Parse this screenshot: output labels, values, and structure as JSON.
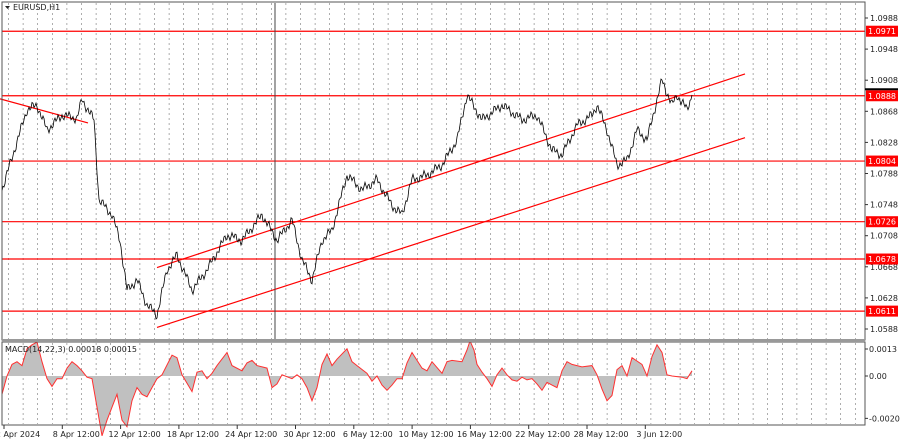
{
  "chart_data": [
    {
      "type": "line",
      "title": "EURUSD,H1",
      "symbol": "EURUSD",
      "timeframe": "H1",
      "ylim": [
        1.0575,
        1.1005
      ],
      "y_ticks": [
        1.0988,
        1.0948,
        1.0908,
        1.0868,
        1.0828,
        1.0788,
        1.0748,
        1.0708,
        1.0668,
        1.0628,
        1.0588
      ],
      "x_tick_labels": [
        "2 Apr 2024",
        "8 Apr 12:00",
        "12 Apr 12:00",
        "18 Apr 12:00",
        "24 Apr 12:00",
        "30 Apr 12:00",
        "6 May 12:00",
        "10 May 12:00",
        "16 May 12:00",
        "22 May 12:00",
        "28 May 12:00",
        "3 Jun 12:00"
      ],
      "grid": "vertical dashed",
      "levels": [
        {
          "label": "1.0971",
          "value": 1.0971
        },
        {
          "label": "1.0888",
          "value": 1.0888
        },
        {
          "label": "1.0804",
          "value": 1.0804
        },
        {
          "label": "1.0726",
          "value": 1.0726
        },
        {
          "label": "1.0678",
          "value": 1.0678
        },
        {
          "label": "1.0611",
          "value": 1.0611
        }
      ],
      "current_price_marker": 1.0888,
      "trend_lines": [
        {
          "name": "channel-upper",
          "from": [
            31,
            1.0667
          ],
          "to": [
            148.6,
            1.0916
          ]
        },
        {
          "name": "channel-lower",
          "from": [
            31,
            1.059
          ],
          "to": [
            148.6,
            1.0834
          ]
        },
        {
          "name": "descending-line",
          "from": [
            -0.4,
            1.0884
          ],
          "to": [
            17.2,
            1.0853
          ]
        }
      ],
      "vertical_marker_t": 54.6,
      "series": [
        {
          "name": "EURUSD close",
          "points": [
            [
              0,
              1.0767
            ],
            [
              5,
              1.087
            ],
            [
              7,
              1.0876
            ],
            [
              9,
              1.0844
            ],
            [
              12,
              1.0863
            ],
            [
              15,
              1.0859
            ],
            [
              16,
              1.0883
            ],
            [
              18.4,
              1.0857
            ],
            [
              19.4,
              1.0754
            ],
            [
              22,
              1.0735
            ],
            [
              23.6,
              1.0702
            ],
            [
              25,
              1.0638
            ],
            [
              27,
              1.0651
            ],
            [
              29,
              1.0619
            ],
            [
              31,
              1.0606
            ],
            [
              33,
              1.0664
            ],
            [
              35,
              1.0683
            ],
            [
              38,
              1.0638
            ],
            [
              41,
              1.0664
            ],
            [
              45,
              1.0709
            ],
            [
              48,
              1.0702
            ],
            [
              52,
              1.0735
            ],
            [
              55,
              1.0702
            ],
            [
              58,
              1.0728
            ],
            [
              60,
              1.0677
            ],
            [
              62,
              1.0651
            ],
            [
              64,
              1.0702
            ],
            [
              66,
              1.0715
            ],
            [
              69,
              1.0786
            ],
            [
              72,
              1.0767
            ],
            [
              75,
              1.078
            ],
            [
              78,
              1.0747
            ],
            [
              80,
              1.0735
            ],
            [
              82,
              1.078
            ],
            [
              85,
              1.0786
            ],
            [
              88,
              1.0799
            ],
            [
              91,
              1.0831
            ],
            [
              93,
              1.0889
            ],
            [
              96,
              1.0857
            ],
            [
              100,
              1.0876
            ],
            [
              104,
              1.0857
            ],
            [
              107,
              1.0863
            ],
            [
              110,
              1.0818
            ],
            [
              112,
              1.0812
            ],
            [
              115,
              1.085
            ],
            [
              118,
              1.0863
            ],
            [
              119,
              1.0876
            ],
            [
              121,
              1.0844
            ],
            [
              123,
              1.0799
            ],
            [
              125,
              1.0805
            ],
            [
              127,
              1.0844
            ],
            [
              129,
              1.0831
            ],
            [
              131,
              1.0883
            ],
            [
              132,
              1.0908
            ],
            [
              134,
              1.0876
            ],
            [
              135,
              1.0889
            ],
            [
              137,
              1.087
            ],
            [
              138,
              1.0889
            ]
          ]
        }
      ],
      "colors": {
        "line": "#000000",
        "level": "#ff0000",
        "label_bg": "#ff0000"
      }
    },
    {
      "type": "area",
      "title": "MACD(14,22,3) 0.00018 0.00015",
      "y_ticks": [
        {
          "label": "0.0013",
          "value": 0.0013
        },
        {
          "label": "0.00",
          "value": 0
        },
        {
          "label": "-0.00204",
          "value": -0.00204
        }
      ],
      "ylim": [
        -0.0024,
        0.0017
      ],
      "value_unit": 0.0001,
      "series": [
        {
          "name": "MACD histogram / signal",
          "points": [
            [
              0,
              -8.8
            ],
            [
              1,
              0
            ],
            [
              2,
              5.6
            ],
            [
              3,
              6.9
            ],
            [
              4,
              5
            ],
            [
              5,
              13.1
            ],
            [
              6,
              15
            ],
            [
              7,
              16.3
            ],
            [
              8,
              6.9
            ],
            [
              9,
              -1.3
            ],
            [
              10,
              -5
            ],
            [
              11,
              -1.3
            ],
            [
              12,
              -1.3
            ],
            [
              13,
              3.8
            ],
            [
              14,
              6.9
            ],
            [
              15,
              5
            ],
            [
              16,
              2.5
            ],
            [
              17,
              -0.6
            ],
            [
              18,
              -1.3
            ],
            [
              19,
              -15
            ],
            [
              20,
              -28.8
            ],
            [
              21,
              -21.3
            ],
            [
              22,
              -15
            ],
            [
              23,
              -8.8
            ],
            [
              24,
              -21.3
            ],
            [
              25,
              -24.4
            ],
            [
              26,
              -11.9
            ],
            [
              27,
              -5.6
            ],
            [
              28,
              -8.8
            ],
            [
              29,
              -10
            ],
            [
              30,
              -5.6
            ],
            [
              31,
              -1.3
            ],
            [
              32,
              0.6
            ],
            [
              34,
              10
            ],
            [
              35,
              8.8
            ],
            [
              36,
              0.6
            ],
            [
              38,
              -7.5
            ],
            [
              39,
              1.9
            ],
            [
              40,
              2.5
            ],
            [
              41,
              -1.3
            ],
            [
              42,
              1.3
            ],
            [
              43,
              5
            ],
            [
              45,
              11.3
            ],
            [
              46,
              5
            ],
            [
              48,
              2.5
            ],
            [
              49,
              6.3
            ],
            [
              50,
              7.5
            ],
            [
              51,
              5
            ],
            [
              53,
              3.8
            ],
            [
              54,
              -5.6
            ],
            [
              55,
              -3.8
            ],
            [
              56,
              0.6
            ],
            [
              58,
              -1.3
            ],
            [
              59,
              0.6
            ],
            [
              60,
              -1.3
            ],
            [
              61,
              -5.6
            ],
            [
              62,
              -11.9
            ],
            [
              63,
              -5.6
            ],
            [
              64,
              5.6
            ],
            [
              65,
              10.6
            ],
            [
              66,
              5
            ],
            [
              67,
              8.1
            ],
            [
              69,
              13.1
            ],
            [
              70,
              6.9
            ],
            [
              71,
              5
            ],
            [
              73,
              1.3
            ],
            [
              74,
              -2.5
            ],
            [
              75,
              0
            ],
            [
              76,
              -4.4
            ],
            [
              77,
              -6.9
            ],
            [
              78,
              -4.4
            ],
            [
              79,
              -1.3
            ],
            [
              80,
              -1.3
            ],
            [
              81,
              6.3
            ],
            [
              82,
              11.3
            ],
            [
              84,
              3.8
            ],
            [
              85,
              2.5
            ],
            [
              86,
              6.9
            ],
            [
              88,
              1.3
            ],
            [
              89,
              6.9
            ],
            [
              90,
              7.5
            ],
            [
              92,
              6.9
            ],
            [
              93,
              12.5
            ],
            [
              93.6,
              16.9
            ],
            [
              94.4,
              12.5
            ],
            [
              95,
              5.6
            ],
            [
              96,
              1.9
            ],
            [
              97,
              -1.3
            ],
            [
              98,
              -5
            ],
            [
              99,
              0.6
            ],
            [
              100,
              3.8
            ],
            [
              101,
              0.6
            ],
            [
              102,
              -1.9
            ],
            [
              103,
              -2.5
            ],
            [
              104,
              -0.6
            ],
            [
              105,
              -1.9
            ],
            [
              106,
              -1.3
            ],
            [
              107,
              -3.8
            ],
            [
              108,
              -6.9
            ],
            [
              109,
              -3.1
            ],
            [
              110,
              -4.4
            ],
            [
              111,
              -5.6
            ],
            [
              112,
              2.5
            ],
            [
              113,
              6.9
            ],
            [
              114,
              5.6
            ],
            [
              116,
              4.4
            ],
            [
              118,
              5
            ],
            [
              119,
              0.6
            ],
            [
              120,
              -6.3
            ],
            [
              121,
              -11.9
            ],
            [
              122,
              -9.4
            ],
            [
              123,
              3.1
            ],
            [
              124,
              5
            ],
            [
              125,
              0
            ],
            [
              126,
              8.8
            ],
            [
              128,
              5.6
            ],
            [
              129,
              0
            ],
            [
              130,
              9.4
            ],
            [
              131,
              15
            ],
            [
              132,
              11.3
            ],
            [
              133,
              0.6
            ],
            [
              134,
              0
            ],
            [
              136,
              -0.6
            ],
            [
              137,
              -1.3
            ],
            [
              138,
              2.5
            ]
          ]
        }
      ],
      "colors": {
        "fill": "#c0c0c0",
        "line": "#ff3030"
      }
    }
  ]
}
